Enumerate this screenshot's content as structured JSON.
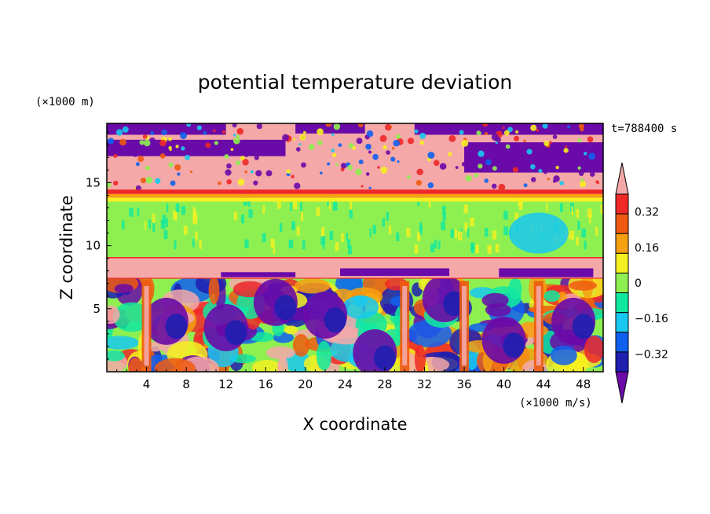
{
  "chart_data": {
    "type": "heatmap",
    "title": "potential temperature deviation",
    "xlabel": "X coordinate",
    "ylabel": "Z coordinate",
    "x_unit": "(×1000 m/s)",
    "y_unit": "(×1000 m)",
    "time_label": "t=788400 s",
    "xlim": [
      0,
      50
    ],
    "ylim": [
      0,
      19.7
    ],
    "x_ticks": [
      4,
      8,
      12,
      16,
      20,
      24,
      28,
      32,
      36,
      40,
      44,
      48
    ],
    "y_ticks": [
      5,
      10,
      15
    ],
    "colorbar": {
      "tick_labels": [
        "0.32",
        "0.16",
        "0",
        "−0.16",
        "−0.32"
      ],
      "tick_values": [
        0.32,
        0.16,
        0,
        -0.16,
        -0.32
      ],
      "levels": [
        -0.4,
        -0.32,
        -0.24,
        -0.16,
        -0.08,
        0,
        0.08,
        0.16,
        0.24,
        0.32,
        0.4
      ],
      "colors": [
        "#6a0aa8",
        "#1f1fb0",
        "#1060f0",
        "#18c8f0",
        "#10e8a0",
        "#8ef050",
        "#f6f020",
        "#f6a010",
        "#f05a10",
        "#f02828",
        "#f4a8a8"
      ]
    },
    "layers": [
      {
        "z": [
          18.6,
          19.7
        ],
        "pattern": "mixed pink/purple upper layer"
      },
      {
        "z": [
          14.4,
          18.6
        ],
        "pattern": "pink (>0.4) with purple patches"
      },
      {
        "z": [
          13.5,
          14.4
        ],
        "pattern": "red to yellow transition"
      },
      {
        "z": [
          9.1,
          13.5
        ],
        "pattern": "green near-zero, cyan patch near x=43"
      },
      {
        "z": [
          7.4,
          9.1
        ],
        "pattern": "red band over pink with purple blocks"
      },
      {
        "z": [
          0,
          7.4
        ],
        "pattern": "turbulent mix of all values"
      }
    ]
  }
}
